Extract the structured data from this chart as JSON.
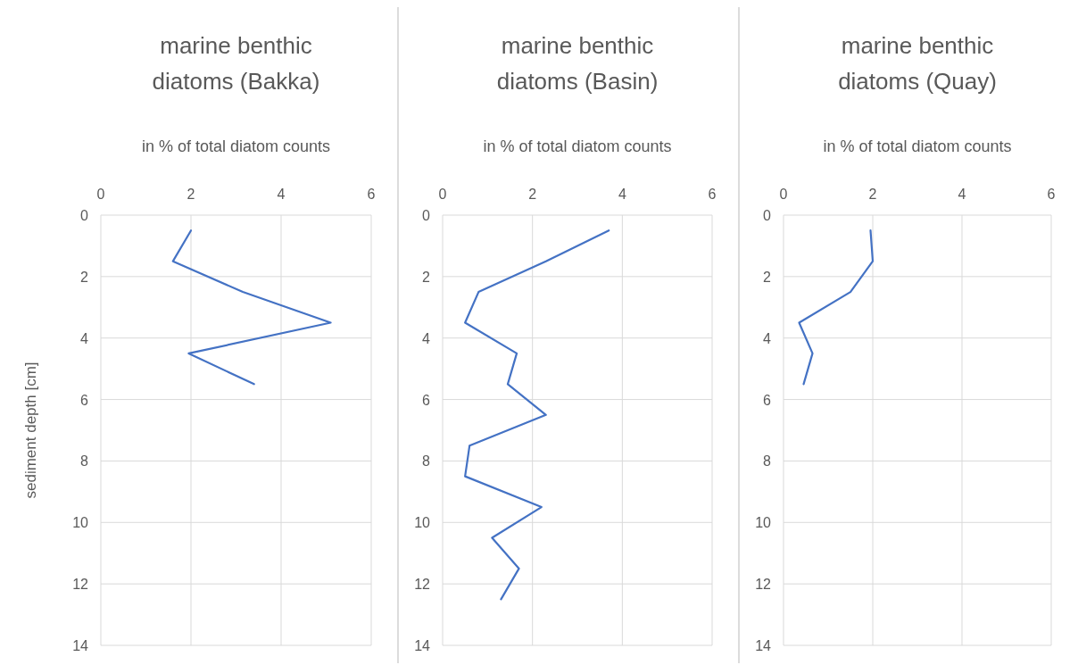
{
  "chart_data": [
    {
      "type": "line",
      "title": "marine benthic diatoms (Bakka)",
      "xlabel": "in % of total diatom counts",
      "ylabel": "sediment depth [cm]",
      "xlim": [
        0,
        6
      ],
      "xticks": [
        0,
        2,
        4,
        6
      ],
      "ylim": [
        14,
        0
      ],
      "yticks": [
        0,
        2,
        4,
        6,
        8,
        10,
        12,
        14
      ],
      "grid": true,
      "marker": "none",
      "series": [
        {
          "color": "#4472c4",
          "x": [
            2.0,
            1.6,
            3.15,
            5.1,
            1.95,
            3.4
          ],
          "values": [
            0.5,
            1.5,
            2.5,
            3.5,
            4.5,
            5.5
          ]
        }
      ]
    },
    {
      "type": "line",
      "title": "marine benthic diatoms (Basin)",
      "xlabel": "in % of total diatom counts",
      "xlim": [
        0,
        6
      ],
      "xticks": [
        0,
        2,
        4,
        6
      ],
      "ylim": [
        14,
        0
      ],
      "yticks": [
        0,
        2,
        4,
        6,
        8,
        10,
        12,
        14
      ],
      "grid": true,
      "marker": "none",
      "series": [
        {
          "color": "#4472c4",
          "x": [
            3.7,
            2.3,
            0.8,
            0.5,
            1.65,
            1.45,
            2.3,
            0.6,
            0.5,
            2.2,
            1.1,
            1.7,
            1.3
          ],
          "values": [
            0.5,
            1.5,
            2.5,
            3.5,
            4.5,
            5.5,
            6.5,
            7.5,
            8.5,
            9.5,
            10.5,
            11.5,
            12.5
          ]
        }
      ]
    },
    {
      "type": "line",
      "title": "marine benthic diatoms (Quay)",
      "xlabel": "in % of total diatom counts",
      "xlim": [
        0,
        6
      ],
      "xticks": [
        0,
        2,
        4,
        6
      ],
      "ylim": [
        14,
        0
      ],
      "yticks": [
        0,
        2,
        4,
        6,
        8,
        10,
        12,
        14
      ],
      "grid": true,
      "marker": "none",
      "series": [
        {
          "color": "#4472c4",
          "x": [
            1.95,
            2.0,
            1.5,
            0.35,
            0.65,
            0.45
          ],
          "values": [
            0.5,
            1.5,
            2.5,
            3.5,
            4.5,
            5.5
          ]
        }
      ]
    }
  ]
}
